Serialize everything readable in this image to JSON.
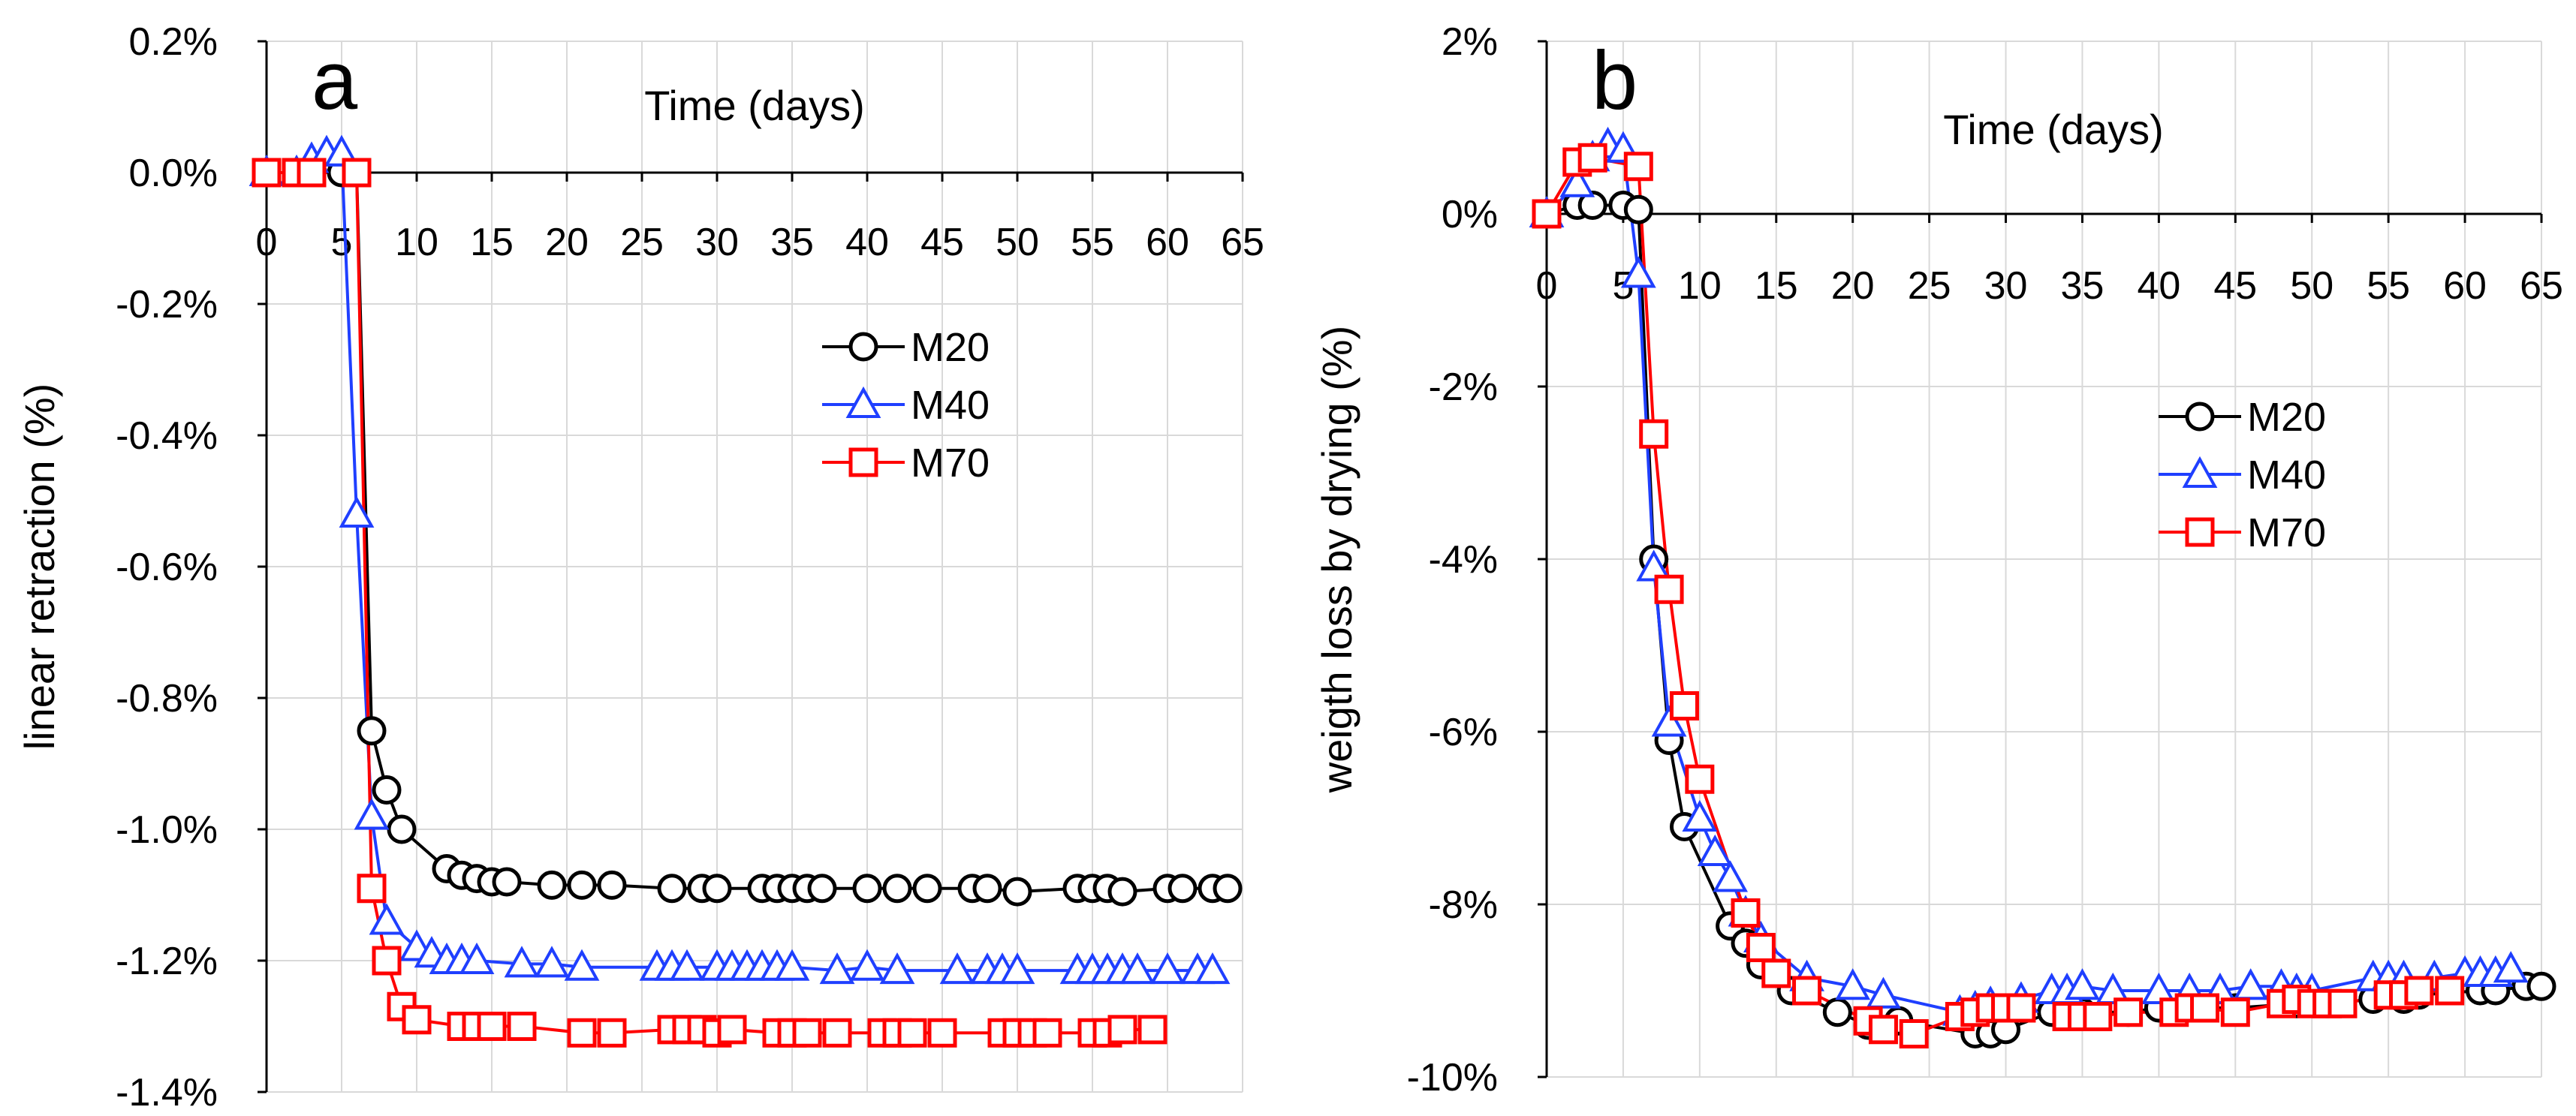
{
  "colors": {
    "M20": "#000000",
    "M40": "#1f3fff",
    "M70": "#ff0000",
    "grid": "#d9d9d9"
  },
  "chart_data": [
    {
      "type": "line",
      "panel_letter": "a",
      "title": "",
      "xlabel": "Time (days)",
      "ylabel": "linear retraction (%)",
      "xlim": [
        0,
        65
      ],
      "ylim": [
        -1.4,
        0.2
      ],
      "xticks": [
        "0",
        "5",
        "10",
        "15",
        "20",
        "25",
        "30",
        "35",
        "40",
        "45",
        "50",
        "55",
        "60",
        "65"
      ],
      "yticks": [
        "0.2%",
        "0.0%",
        "-0.2%",
        "-0.4%",
        "-0.6%",
        "-0.8%",
        "-1.0%",
        "-1.2%",
        "-1.4%"
      ],
      "legend": [
        "M20",
        "M40",
        "M70"
      ],
      "series": [
        {
          "name": "M20",
          "marker": "circle",
          "x": [
            0,
            2,
            3,
            5,
            6,
            7,
            8,
            9,
            12,
            13,
            14,
            15,
            16,
            19,
            21,
            23,
            27,
            29,
            30,
            33,
            34,
            35,
            36,
            37,
            40,
            42,
            44,
            47,
            48,
            50,
            54,
            55,
            56,
            57,
            60,
            61,
            63,
            64
          ],
          "y": [
            0,
            0,
            0,
            0,
            0,
            -0.85,
            -0.94,
            -1.0,
            -1.06,
            -1.07,
            -1.075,
            -1.08,
            -1.08,
            -1.085,
            -1.085,
            -1.085,
            -1.09,
            -1.09,
            -1.09,
            -1.09,
            -1.09,
            -1.09,
            -1.09,
            -1.09,
            -1.09,
            -1.09,
            -1.09,
            -1.09,
            -1.09,
            -1.095,
            -1.09,
            -1.09,
            -1.09,
            -1.095,
            -1.09,
            -1.09,
            -1.09,
            -1.09
          ]
        },
        {
          "name": "M40",
          "marker": "triangle",
          "x": [
            0,
            2,
            3,
            4,
            5,
            6,
            7,
            8,
            10,
            11,
            12,
            13,
            14,
            17,
            19,
            21,
            26,
            27,
            28,
            30,
            31,
            32,
            33,
            34,
            35,
            38,
            40,
            42,
            46,
            48,
            49,
            50,
            54,
            55,
            56,
            57,
            58,
            60,
            62,
            63
          ],
          "y": [
            0,
            0,
            0.02,
            0.03,
            0.03,
            -0.52,
            -0.98,
            -1.14,
            -1.18,
            -1.19,
            -1.2,
            -1.2,
            -1.2,
            -1.205,
            -1.205,
            -1.21,
            -1.21,
            -1.21,
            -1.21,
            -1.21,
            -1.21,
            -1.21,
            -1.21,
            -1.21,
            -1.21,
            -1.215,
            -1.21,
            -1.215,
            -1.215,
            -1.215,
            -1.215,
            -1.215,
            -1.215,
            -1.215,
            -1.215,
            -1.215,
            -1.215,
            -1.215,
            -1.215,
            -1.215
          ]
        },
        {
          "name": "M70",
          "marker": "square",
          "x": [
            0,
            2,
            3,
            6,
            7,
            8,
            9,
            10,
            13,
            14,
            15,
            17,
            21,
            23,
            27,
            28,
            29,
            30,
            31,
            34,
            35,
            36,
            38,
            41,
            42,
            43,
            45,
            49,
            50,
            51,
            52,
            55,
            56,
            57,
            59
          ],
          "y": [
            0,
            0,
            0,
            0,
            -1.09,
            -1.2,
            -1.27,
            -1.29,
            -1.3,
            -1.3,
            -1.3,
            -1.3,
            -1.31,
            -1.31,
            -1.305,
            -1.305,
            -1.305,
            -1.31,
            -1.305,
            -1.31,
            -1.31,
            -1.31,
            -1.31,
            -1.31,
            -1.31,
            -1.31,
            -1.31,
            -1.31,
            -1.31,
            -1.31,
            -1.31,
            -1.31,
            -1.31,
            -1.305,
            -1.305
          ]
        }
      ]
    },
    {
      "type": "line",
      "panel_letter": "b",
      "title": "",
      "xlabel": "Time (days)",
      "ylabel": "weigth loss by drying (%)",
      "xlim": [
        0,
        65
      ],
      "ylim": [
        -10,
        2
      ],
      "xticks": [
        "0",
        "5",
        "10",
        "15",
        "20",
        "25",
        "30",
        "35",
        "40",
        "45",
        "50",
        "55",
        "60",
        "65"
      ],
      "yticks": [
        "2%",
        "0%",
        "-2%",
        "-4%",
        "-6%",
        "-8%",
        "-10%"
      ],
      "legend": [
        "M20",
        "M40",
        "M70"
      ],
      "series": [
        {
          "name": "M20",
          "marker": "circle",
          "x": [
            0,
            2,
            3,
            5,
            6,
            7,
            8,
            9,
            12,
            13,
            14,
            16,
            19,
            21,
            23,
            28,
            29,
            30,
            33,
            34,
            35,
            38,
            40,
            42,
            45,
            49,
            51,
            54,
            56,
            57,
            61,
            62,
            64,
            65
          ],
          "y": [
            0,
            0.1,
            0.1,
            0.1,
            0.05,
            -4.0,
            -6.1,
            -7.1,
            -8.25,
            -8.45,
            -8.7,
            -9.0,
            -9.25,
            -9.4,
            -9.35,
            -9.5,
            -9.5,
            -9.45,
            -9.25,
            -9.25,
            -9.25,
            -9.25,
            -9.2,
            -9.2,
            -9.2,
            -9.15,
            -9.15,
            -9.1,
            -9.1,
            -9.05,
            -9.0,
            -9.0,
            -8.95,
            -8.95
          ]
        },
        {
          "name": "M40",
          "marker": "triangle",
          "x": [
            0,
            2,
            3,
            4,
            5,
            6,
            7,
            8,
            10,
            11,
            12,
            13,
            14,
            17,
            20,
            22,
            27,
            28,
            29,
            31,
            33,
            34,
            35,
            37,
            40,
            42,
            44,
            46,
            48,
            49,
            50,
            54,
            55,
            56,
            58,
            60,
            61,
            62,
            63
          ],
          "y": [
            0,
            0.35,
            0.65,
            0.8,
            0.75,
            -0.7,
            -4.1,
            -5.9,
            -7.0,
            -7.4,
            -7.7,
            -8.1,
            -8.4,
            -8.85,
            -8.95,
            -9.05,
            -9.25,
            -9.2,
            -9.15,
            -9.1,
            -9.0,
            -9.0,
            -8.95,
            -9.0,
            -9.0,
            -9.0,
            -9.0,
            -8.95,
            -8.95,
            -9.0,
            -9.0,
            -8.85,
            -8.85,
            -8.85,
            -8.85,
            -8.8,
            -8.8,
            -8.8,
            -8.75
          ]
        },
        {
          "name": "M70",
          "marker": "square",
          "x": [
            0,
            2,
            3,
            6,
            7,
            8,
            9,
            10,
            13,
            14,
            15,
            17,
            21,
            22,
            24,
            27,
            28,
            29,
            30,
            31,
            34,
            35,
            36,
            38,
            41,
            42,
            43,
            45,
            48,
            49,
            50,
            51,
            52,
            55,
            56,
            57,
            59
          ],
          "y": [
            0,
            0.6,
            0.65,
            0.55,
            -2.55,
            -4.35,
            -5.7,
            -6.55,
            -8.1,
            -8.5,
            -8.8,
            -9.0,
            -9.35,
            -9.45,
            -9.5,
            -9.3,
            -9.25,
            -9.2,
            -9.2,
            -9.2,
            -9.3,
            -9.3,
            -9.3,
            -9.25,
            -9.25,
            -9.2,
            -9.2,
            -9.25,
            -9.15,
            -9.1,
            -9.15,
            -9.15,
            -9.15,
            -9.05,
            -9.05,
            -9.0,
            -9.0
          ]
        }
      ]
    }
  ]
}
